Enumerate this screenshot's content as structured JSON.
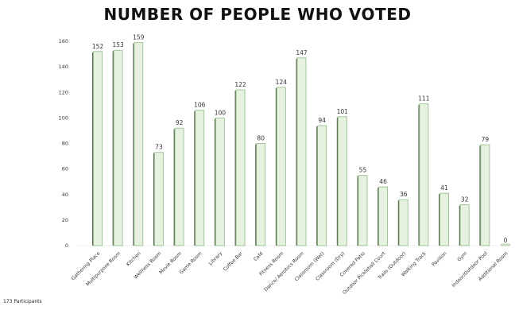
{
  "chart_data": {
    "type": "bar",
    "title": "NUMBER OF PEOPLE WHO VOTED",
    "xlabel": "",
    "ylabel": "",
    "ylim": [
      0,
      160
    ],
    "yticks": [
      0,
      20,
      40,
      60,
      80,
      100,
      120,
      140,
      160
    ],
    "grid": false,
    "categories": [
      "Gathering Place",
      "Multipurpose Room",
      "Kitchen",
      "Wellness Room",
      "Movie Room",
      "Game Room",
      "Library",
      "Coffee Bar",
      "Café",
      "Fitness Room",
      "Dance/ Aerobics Room",
      "Classroom (Wet)",
      "Classroom (Dry)",
      "Covered Patio",
      "Outdoor Pickleball Court",
      "Trails (Outdoor)",
      "Walking Track",
      "Pavilion",
      "Gym",
      "Indoor/Outdoor Pool",
      "Additional Room"
    ],
    "values": [
      152,
      153,
      159,
      73,
      92,
      106,
      100,
      122,
      80,
      124,
      147,
      94,
      101,
      55,
      46,
      36,
      111,
      41,
      32,
      79,
      0
    ],
    "data_labels": [
      "152",
      "153",
      "159",
      "73",
      "92",
      "106",
      "100",
      "122",
      "80",
      "124",
      "147",
      "94",
      "101",
      "55",
      "46",
      "36",
      "111",
      "41",
      "32",
      "79",
      "0"
    ],
    "bar_fill": "#e6f2df",
    "bar_stroke": "#8fb987",
    "bar_shadow": "#5e6e55"
  },
  "footer": {
    "participants": "173 Participants"
  }
}
